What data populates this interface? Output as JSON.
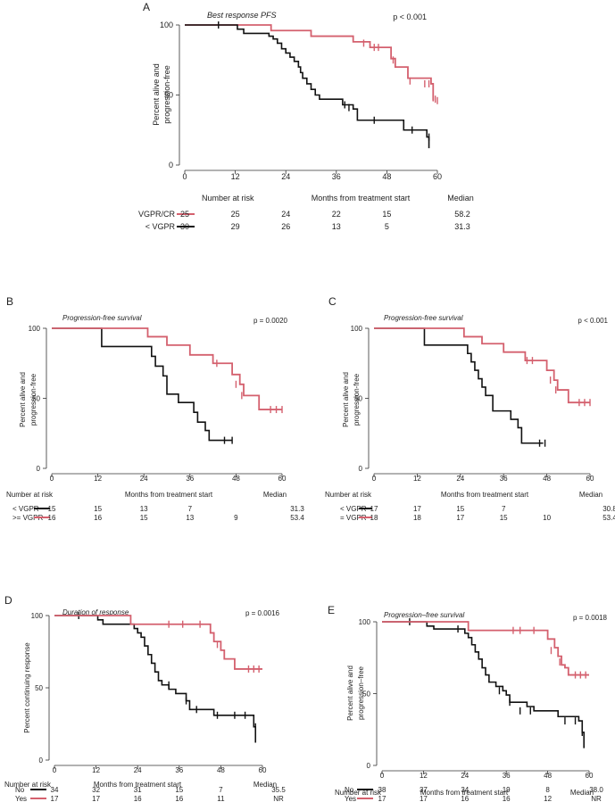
{
  "colors": {
    "red": "#d4606e",
    "black": "#111111",
    "axis": "#333333"
  },
  "chart_data": [
    {
      "type": "line",
      "panel": "A",
      "title": "Best response PFS",
      "pvalue": "p < 0.001",
      "ylabel_lines": [
        "Percent alive and",
        "progression-free"
      ],
      "xlabel": "Months from treatment start",
      "xlim": [
        0,
        60
      ],
      "ylim": [
        0,
        100
      ],
      "xticks": [
        0,
        12,
        24,
        36,
        48,
        60
      ],
      "yticks": [
        0,
        50,
        100
      ],
      "risk": {
        "header": "Number at risk",
        "median_header": "Median",
        "rows": [
          {
            "label": "VGPR/CR",
            "color": "red",
            "counts": [
              "25",
              "25",
              "24",
              "22",
              "15"
            ],
            "median": "58.2"
          },
          {
            "label": "< VGPR",
            "color": "black",
            "counts": [
              "30",
              "29",
              "26",
              "13",
              "5"
            ],
            "median": "31.3"
          }
        ]
      },
      "series": [
        {
          "name": "VGPR/CR",
          "color": "red",
          "x": [
            0,
            20,
            20.5,
            27,
            30,
            40,
            44,
            49,
            50,
            53,
            58.5,
            59
          ],
          "y": [
            100,
            100,
            96,
            96,
            92,
            88,
            84,
            76,
            70,
            62,
            58,
            46
          ],
          "censors": [
            [
              42.5,
              87
            ],
            [
              45,
              84
            ],
            [
              46,
              84
            ],
            [
              49.5,
              75
            ],
            [
              53.5,
              60
            ],
            [
              57,
              58
            ],
            [
              58,
              58
            ],
            [
              59,
              48
            ],
            [
              59.5,
              47
            ],
            [
              60,
              46
            ]
          ]
        },
        {
          "name": "< VGPR",
          "color": "black",
          "x": [
            0,
            12,
            12.5,
            14,
            20,
            21,
            22,
            23,
            24,
            25,
            26,
            27,
            27.5,
            28,
            29,
            30,
            31,
            32,
            37,
            37.5,
            40,
            41,
            47,
            52,
            57,
            57.5,
            58
          ],
          "y": [
            100,
            100,
            97,
            94,
            92,
            90,
            87,
            83,
            80,
            77,
            74,
            70,
            66,
            62,
            58,
            54,
            50,
            47,
            47,
            43,
            40,
            32,
            32,
            25,
            25,
            20,
            12
          ],
          "censors": [
            [
              8,
              100
            ],
            [
              38,
              43
            ],
            [
              39,
              41
            ],
            [
              45,
              32
            ],
            [
              54,
              25
            ],
            [
              58,
              20
            ]
          ]
        }
      ]
    },
    {
      "type": "line",
      "panel": "B",
      "title": "Progression-free survival",
      "pvalue": "p = 0.0020",
      "ylabel_lines": [
        "Percent alive and",
        "progression-free"
      ],
      "xlabel": "Months from treatment start",
      "xlim": [
        0,
        60
      ],
      "ylim": [
        0,
        100
      ],
      "xticks": [
        0,
        12,
        24,
        36,
        48,
        60
      ],
      "yticks": [
        0,
        50,
        100
      ],
      "risk": {
        "header": "Number at risk",
        "median_header": "Median",
        "rows": [
          {
            "label": "< VGPR",
            "color": "black",
            "counts": [
              "15",
              "15",
              "13",
              "7",
              ""
            ],
            "median": "31.3"
          },
          {
            "label": ">= VGPR",
            "color": "red",
            "counts": [
              "16",
              "16",
              "15",
              "13",
              "9"
            ],
            "median": "53.4"
          }
        ]
      },
      "series": [
        {
          "name": "< VGPR",
          "color": "black",
          "x": [
            0,
            12,
            13,
            24,
            26,
            27,
            29,
            30,
            33,
            37,
            38,
            40,
            41,
            47
          ],
          "y": [
            100,
            100,
            87,
            87,
            80,
            73,
            66,
            53,
            47,
            40,
            33,
            27,
            20,
            20
          ],
          "censors": [
            [
              45,
              20
            ],
            [
              47,
              20
            ]
          ]
        },
        {
          "name": ">= VGPR",
          "color": "red",
          "x": [
            0,
            24,
            25,
            30,
            36,
            42,
            45,
            47,
            49,
            50,
            54,
            60
          ],
          "y": [
            100,
            100,
            94,
            88,
            81,
            75,
            75,
            67,
            60,
            52,
            42,
            42
          ],
          "censors": [
            [
              43,
              75
            ],
            [
              48,
              60
            ],
            [
              49.5,
              52
            ],
            [
              57,
              42
            ],
            [
              58.5,
              42
            ],
            [
              60,
              42
            ]
          ]
        }
      ]
    },
    {
      "type": "line",
      "panel": "C",
      "title": "Progression-free survival",
      "pvalue": "p < 0.001",
      "ylabel_lines": [
        "Percent alive and",
        "progression-free"
      ],
      "xlabel": "Months from treatment start",
      "xlim": [
        0,
        60
      ],
      "ylim": [
        0,
        100
      ],
      "xticks": [
        0,
        12,
        24,
        36,
        48,
        60
      ],
      "yticks": [
        0,
        50,
        100
      ],
      "risk": {
        "header": "Number at risk",
        "median_header": "Median",
        "rows": [
          {
            "label": "< VGPR",
            "color": "black",
            "counts": [
              "17",
              "17",
              "15",
              "7",
              ""
            ],
            "median": "30.8"
          },
          {
            "label": "= VGPR",
            "color": "red",
            "counts": [
              "18",
              "18",
              "17",
              "15",
              "10"
            ],
            "median": "53.4"
          }
        ]
      },
      "series": [
        {
          "name": "< VGPR",
          "color": "black",
          "x": [
            0,
            12,
            14,
            24,
            26,
            27,
            28,
            29,
            30,
            31,
            33,
            37,
            38,
            40,
            41,
            47
          ],
          "y": [
            100,
            100,
            88,
            88,
            82,
            76,
            70,
            64,
            58,
            52,
            41,
            41,
            35,
            29,
            18,
            18
          ],
          "censors": [
            [
              46,
              18
            ],
            [
              47.5,
              18
            ]
          ]
        },
        {
          "name": "= VGPR",
          "color": "red",
          "x": [
            0,
            24,
            25,
            30,
            36,
            42,
            46,
            48,
            50,
            51,
            54,
            60
          ],
          "y": [
            100,
            100,
            94,
            89,
            83,
            77,
            77,
            70,
            63,
            56,
            47,
            47
          ],
          "censors": [
            [
              42.5,
              77
            ],
            [
              44,
              77
            ],
            [
              49,
              63
            ],
            [
              50.5,
              56
            ],
            [
              57,
              47
            ],
            [
              58.5,
              47
            ],
            [
              60,
              47
            ]
          ]
        }
      ]
    },
    {
      "type": "line",
      "panel": "D",
      "title": "Duration of response",
      "pvalue": "p = 0.0016",
      "ylabel_lines": [
        "Percent continuing response"
      ],
      "xlabel": "Months from treatment start",
      "xlim": [
        0,
        60
      ],
      "ylim": [
        0,
        100
      ],
      "xticks": [
        0,
        12,
        24,
        36,
        48,
        60
      ],
      "yticks": [
        0,
        50,
        100
      ],
      "risk": {
        "header": "Number at risk",
        "median_header": "Median",
        "rows": [
          {
            "label": "No",
            "color": "black",
            "counts": [
              "34",
              "32",
              "31",
              "15",
              "7"
            ],
            "median": "35.5"
          },
          {
            "label": "Yes",
            "color": "red",
            "counts": [
              "17",
              "17",
              "16",
              "16",
              "11"
            ],
            "median": "NR"
          }
        ]
      },
      "series": [
        {
          "name": "No",
          "color": "black",
          "x": [
            0,
            12,
            12.5,
            14,
            20,
            23,
            24,
            25,
            26,
            27,
            28,
            29,
            30,
            31,
            33,
            35,
            38,
            39,
            45,
            46,
            57,
            57.5,
            58
          ],
          "y": [
            100,
            100,
            97,
            94,
            94,
            91,
            88,
            85,
            79,
            73,
            67,
            61,
            55,
            52,
            49,
            46,
            41,
            35,
            35,
            31,
            31,
            23,
            12
          ],
          "censors": [
            [
              7,
              100
            ],
            [
              33,
              52
            ],
            [
              38,
              41
            ],
            [
              41,
              35
            ],
            [
              47,
              31
            ],
            [
              52,
              31
            ],
            [
              55,
              31
            ],
            [
              58,
              23
            ]
          ]
        },
        {
          "name": "Yes",
          "color": "red",
          "x": [
            0,
            21,
            22,
            44,
            45,
            46,
            48,
            49,
            52,
            60
          ],
          "y": [
            100,
            100,
            94,
            94,
            88,
            82,
            76,
            70,
            63,
            63
          ],
          "censors": [
            [
              33,
              94
            ],
            [
              37,
              94
            ],
            [
              42,
              94
            ],
            [
              47,
              80
            ],
            [
              56,
              63
            ],
            [
              57.5,
              63
            ],
            [
              59,
              63
            ]
          ]
        }
      ]
    },
    {
      "type": "line",
      "panel": "E",
      "title": "Progression–free survival",
      "pvalue": "p = 0.0018",
      "ylabel_lines": [
        "Percent alive and",
        "progression–free"
      ],
      "xlabel": "Months from treatment start",
      "xlim": [
        0,
        60
      ],
      "ylim": [
        0,
        100
      ],
      "xticks": [
        0,
        12,
        24,
        36,
        48,
        60
      ],
      "yticks": [
        0,
        50,
        100
      ],
      "risk": {
        "header": "Number at risk",
        "median_header": "Median",
        "rows": [
          {
            "label": "No",
            "color": "black",
            "counts": [
              "38",
              "37",
              "34",
              "19",
              "8"
            ],
            "median": "38.0"
          },
          {
            "label": "Yes",
            "color": "red",
            "counts": [
              "17",
              "17",
              "16",
              "16",
              "12"
            ],
            "median": "NR"
          }
        ]
      },
      "series": [
        {
          "name": "No",
          "color": "black",
          "x": [
            0,
            12,
            13,
            15,
            20,
            24,
            25,
            26,
            27,
            28,
            29,
            30,
            31,
            33,
            35,
            36,
            37,
            42,
            44,
            51,
            57,
            58,
            58.5
          ],
          "y": [
            100,
            100,
            97,
            95,
            95,
            92,
            89,
            84,
            79,
            74,
            68,
            63,
            58,
            55,
            52,
            49,
            44,
            41,
            38,
            34,
            31,
            23,
            12
          ],
          "censors": [
            [
              8,
              100
            ],
            [
              22,
              95
            ],
            [
              34,
              52
            ],
            [
              37,
              44
            ],
            [
              40,
              38
            ],
            [
              43,
              38
            ],
            [
              53,
              31
            ],
            [
              56,
              31
            ],
            [
              58,
              23
            ]
          ]
        },
        {
          "name": "Yes",
          "color": "red",
          "x": [
            0,
            24,
            25,
            47,
            48,
            50,
            51,
            52,
            53,
            54,
            60
          ],
          "y": [
            100,
            100,
            94,
            94,
            88,
            82,
            76,
            70,
            68,
            63,
            63
          ],
          "censors": [
            [
              38,
              94
            ],
            [
              40,
              94
            ],
            [
              44,
              94
            ],
            [
              49,
              80
            ],
            [
              51.5,
              72
            ],
            [
              56,
              63
            ],
            [
              57.5,
              63
            ],
            [
              59,
              63
            ]
          ]
        }
      ]
    }
  ]
}
